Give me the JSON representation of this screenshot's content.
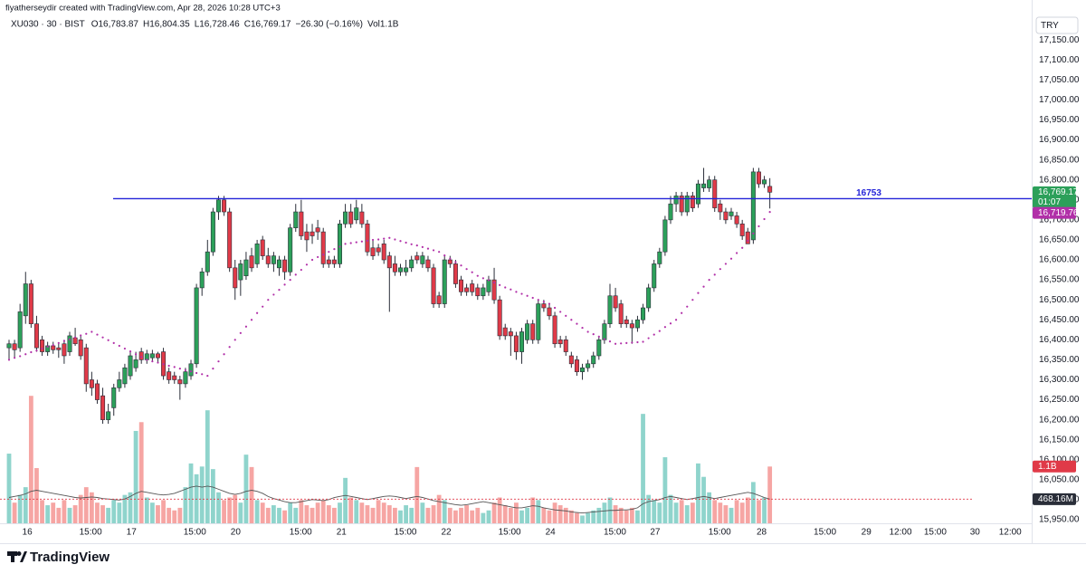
{
  "chart_data": {
    "type": "candlestick",
    "caption": "fiyatherseydir created with TradingView.com, Apr 28, 2026 10:28 UTC+3",
    "symbol": "XU030 · 30 · BIST",
    "status": [
      "O16,783.87",
      "H16,804.35",
      "L16,728.46",
      "C16,769.17",
      "−26.30 (−0.16%)",
      "Vol1.1B"
    ],
    "currency": "TRY",
    "brand": "TradingView",
    "up_color": "#2ca05a",
    "down_color": "#e03a48",
    "wick_color": "#2a2e39",
    "volume_up_color": "#8fd4cc",
    "volume_down_color": "#f6a5a3",
    "sma_color": "#b12fa8",
    "volume_ma_color": "#555555",
    "hline_color": "#2323d8",
    "xlim": [
      -1.64,
      185.5
    ],
    "ylim": [
      15941,
      17250
    ],
    "xticks": [
      {
        "value": 3.3,
        "label": "16"
      },
      {
        "value": 14.8,
        "label": "15:00"
      },
      {
        "value": 22.2,
        "label": "17"
      },
      {
        "value": 33.7,
        "label": "15:00"
      },
      {
        "value": 41.1,
        "label": "20"
      },
      {
        "value": 52.9,
        "label": "15:00"
      },
      {
        "value": 60.3,
        "label": "21"
      },
      {
        "value": 71.9,
        "label": "15:00"
      },
      {
        "value": 79.3,
        "label": "22"
      },
      {
        "value": 90.8,
        "label": "15:00"
      },
      {
        "value": 98.2,
        "label": "24"
      },
      {
        "value": 109.9,
        "label": "15:00"
      },
      {
        "value": 117.2,
        "label": "27"
      },
      {
        "value": 128.9,
        "label": "15:00"
      },
      {
        "value": 136.5,
        "label": "28"
      },
      {
        "value": 148,
        "label": "15:00"
      },
      {
        "value": 155.5,
        "label": "29"
      },
      {
        "value": 161.7,
        "label": "12:00"
      },
      {
        "value": 168,
        "label": "15:00"
      },
      {
        "value": 175.2,
        "label": "30"
      },
      {
        "value": 181.6,
        "label": "12:00"
      }
    ],
    "yticks": [
      {
        "value": 17150,
        "label": "17,150.00"
      },
      {
        "value": 17100,
        "label": "17,100.00"
      },
      {
        "value": 17050,
        "label": "17,050.00"
      },
      {
        "value": 17000,
        "label": "17,000.00"
      },
      {
        "value": 16950,
        "label": "16,950.00"
      },
      {
        "value": 16900,
        "label": "16,900.00"
      },
      {
        "value": 16850,
        "label": "16,850.00"
      },
      {
        "value": 16800,
        "label": "16,800.00"
      },
      {
        "value": 16750,
        "label": "16,750.00"
      },
      {
        "value": 16700,
        "label": "16,700.00"
      },
      {
        "value": 16650,
        "label": "16,650.00"
      },
      {
        "value": 16600,
        "label": "16,600.00"
      },
      {
        "value": 16550,
        "label": "16,550.00"
      },
      {
        "value": 16500,
        "label": "16,500.00"
      },
      {
        "value": 16450,
        "label": "16,450.00"
      },
      {
        "value": 16400,
        "label": "16,400.00"
      },
      {
        "value": 16350,
        "label": "16,350.00"
      },
      {
        "value": 16300,
        "label": "16,300.00"
      },
      {
        "value": 16250,
        "label": "16,250.00"
      },
      {
        "value": 16200,
        "label": "16,200.00"
      },
      {
        "value": 16150,
        "label": "16,150.00"
      },
      {
        "value": 16100,
        "label": "16,100.00"
      },
      {
        "value": 16050,
        "label": "16,050.00"
      },
      {
        "value": 16000,
        "label": "16,000.00"
      },
      {
        "value": 15950,
        "label": "15,950.00"
      }
    ],
    "hline": {
      "value": 16753,
      "label": "16753"
    },
    "last_close_label": "16,769.17",
    "countdown": "01:07",
    "sma_last_label": "16,719.76",
    "volume_last_label": "1.1B",
    "volume_ma_last_label": "468.16M",
    "ohlc": [
      [
        16380,
        16400,
        16350,
        16390
      ],
      [
        16390,
        16400,
        16355,
        16375
      ],
      [
        16380,
        16490,
        16370,
        16470
      ],
      [
        16460,
        16570,
        16440,
        16540
      ],
      [
        16540,
        16550,
        16430,
        16440
      ],
      [
        16440,
        16460,
        16370,
        16380
      ],
      [
        16400,
        16410,
        16360,
        16370
      ],
      [
        16370,
        16395,
        16360,
        16385
      ],
      [
        16385,
        16395,
        16365,
        16375
      ],
      [
        16380,
        16390,
        16355,
        16375
      ],
      [
        16390,
        16400,
        16340,
        16360
      ],
      [
        16370,
        16420,
        16360,
        16410
      ],
      [
        16405,
        16430,
        16385,
        16390
      ],
      [
        16400,
        16410,
        16350,
        16360
      ],
      [
        16380,
        16390,
        16270,
        16290
      ],
      [
        16300,
        16320,
        16260,
        16280
      ],
      [
        16290,
        16300,
        16240,
        16250
      ],
      [
        16260,
        16280,
        16190,
        16200
      ],
      [
        16200,
        16240,
        16190,
        16220
      ],
      [
        16230,
        16290,
        16210,
        16280
      ],
      [
        16280,
        16320,
        16270,
        16300
      ],
      [
        16290,
        16340,
        16280,
        16330
      ],
      [
        16310,
        16370,
        16300,
        16360
      ],
      [
        16330,
        16370,
        16320,
        16350
      ],
      [
        16370,
        16380,
        16340,
        16350
      ],
      [
        16350,
        16375,
        16340,
        16365
      ],
      [
        16355,
        16375,
        16345,
        16365
      ],
      [
        16365,
        16370,
        16345,
        16355
      ],
      [
        16370,
        16380,
        16300,
        16310
      ],
      [
        16320,
        16330,
        16290,
        16300
      ],
      [
        16310,
        16320,
        16290,
        16300
      ],
      [
        16300,
        16310,
        16250,
        16290
      ],
      [
        16290,
        16330,
        16280,
        16320
      ],
      [
        16310,
        16350,
        16300,
        16340
      ],
      [
        16340,
        16540,
        16330,
        16530
      ],
      [
        16530,
        16580,
        16510,
        16570
      ],
      [
        16570,
        16650,
        16560,
        16620
      ],
      [
        16620,
        16730,
        16610,
        16720
      ],
      [
        16720,
        16760,
        16700,
        16750
      ],
      [
        16750,
        16760,
        16710,
        16720
      ],
      [
        16720,
        16730,
        16570,
        16580
      ],
      [
        16580,
        16600,
        16500,
        16530
      ],
      [
        16550,
        16600,
        16510,
        16590
      ],
      [
        16560,
        16620,
        16550,
        16600
      ],
      [
        16610,
        16630,
        16570,
        16580
      ],
      [
        16590,
        16650,
        16580,
        16640
      ],
      [
        16650,
        16660,
        16600,
        16610
      ],
      [
        16610,
        16630,
        16580,
        16590
      ],
      [
        16590,
        16620,
        16570,
        16610
      ],
      [
        16580,
        16610,
        16560,
        16600
      ],
      [
        16600,
        16610,
        16550,
        16570
      ],
      [
        16570,
        16690,
        16560,
        16680
      ],
      [
        16680,
        16740,
        16670,
        16720
      ],
      [
        16720,
        16750,
        16650,
        16660
      ],
      [
        16670,
        16690,
        16620,
        16650
      ],
      [
        16670,
        16690,
        16640,
        16660
      ],
      [
        16680,
        16700,
        16650,
        16670
      ],
      [
        16670,
        16680,
        16580,
        16590
      ],
      [
        16600,
        16610,
        16580,
        16590
      ],
      [
        16600,
        16610,
        16580,
        16590
      ],
      [
        16590,
        16700,
        16580,
        16690
      ],
      [
        16690,
        16740,
        16680,
        16720
      ],
      [
        16720,
        16740,
        16680,
        16690
      ],
      [
        16700,
        16750,
        16690,
        16730
      ],
      [
        16720,
        16740,
        16680,
        16690
      ],
      [
        16690,
        16700,
        16610,
        16620
      ],
      [
        16630,
        16650,
        16600,
        16610
      ],
      [
        16630,
        16640,
        16610,
        16620
      ],
      [
        16640,
        16650,
        16590,
        16600
      ],
      [
        16610,
        16620,
        16470,
        16580
      ],
      [
        16590,
        16610,
        16560,
        16570
      ],
      [
        16570,
        16590,
        16560,
        16580
      ],
      [
        16570,
        16600,
        16560,
        16580
      ],
      [
        16580,
        16610,
        16570,
        16600
      ],
      [
        16610,
        16620,
        16590,
        16600
      ],
      [
        16590,
        16620,
        16580,
        16610
      ],
      [
        16600,
        16610,
        16570,
        16580
      ],
      [
        16580,
        16590,
        16480,
        16490
      ],
      [
        16510,
        16520,
        16480,
        16490
      ],
      [
        16490,
        16610,
        16480,
        16600
      ],
      [
        16600,
        16610,
        16580,
        16590
      ],
      [
        16590,
        16600,
        16530,
        16540
      ],
      [
        16550,
        16560,
        16510,
        16520
      ],
      [
        16530,
        16540,
        16510,
        16520
      ],
      [
        16540,
        16550,
        16510,
        16520
      ],
      [
        16530,
        16540,
        16500,
        16510
      ],
      [
        16510,
        16540,
        16500,
        16530
      ],
      [
        16520,
        16560,
        16510,
        16550
      ],
      [
        16550,
        16580,
        16490,
        16500
      ],
      [
        16500,
        16510,
        16400,
        16410
      ],
      [
        16430,
        16440,
        16400,
        16410
      ],
      [
        16420,
        16430,
        16360,
        16410
      ],
      [
        16410,
        16420,
        16350,
        16370
      ],
      [
        16370,
        16430,
        16340,
        16420
      ],
      [
        16400,
        16450,
        16390,
        16440
      ],
      [
        16440,
        16450,
        16390,
        16400
      ],
      [
        16400,
        16500,
        16390,
        16490
      ],
      [
        16490,
        16500,
        16470,
        16480
      ],
      [
        16480,
        16490,
        16450,
        16460
      ],
      [
        16460,
        16470,
        16380,
        16390
      ],
      [
        16400,
        16410,
        16380,
        16390
      ],
      [
        16400,
        16410,
        16360,
        16370
      ],
      [
        16360,
        16370,
        16330,
        16340
      ],
      [
        16350,
        16360,
        16310,
        16320
      ],
      [
        16320,
        16340,
        16300,
        16330
      ],
      [
        16330,
        16350,
        16320,
        16340
      ],
      [
        16340,
        16370,
        16330,
        16360
      ],
      [
        16360,
        16410,
        16350,
        16400
      ],
      [
        16400,
        16450,
        16390,
        16440
      ],
      [
        16440,
        16540,
        16430,
        16510
      ],
      [
        16510,
        16530,
        16470,
        16480
      ],
      [
        16490,
        16500,
        16430,
        16440
      ],
      [
        16450,
        16460,
        16430,
        16440
      ],
      [
        16440,
        16450,
        16390,
        16430
      ],
      [
        16430,
        16460,
        16420,
        16450
      ],
      [
        16450,
        16490,
        16440,
        16480
      ],
      [
        16480,
        16540,
        16470,
        16530
      ],
      [
        16530,
        16600,
        16520,
        16590
      ],
      [
        16590,
        16630,
        16580,
        16620
      ],
      [
        16620,
        16710,
        16610,
        16700
      ],
      [
        16700,
        16760,
        16690,
        16740
      ],
      [
        16740,
        16770,
        16720,
        16760
      ],
      [
        16760,
        16770,
        16710,
        16720
      ],
      [
        16720,
        16770,
        16710,
        16760
      ],
      [
        16760,
        16770,
        16720,
        16730
      ],
      [
        16740,
        16800,
        16730,
        16790
      ],
      [
        16780,
        16830,
        16770,
        16790
      ],
      [
        16780,
        16810,
        16770,
        16800
      ],
      [
        16800,
        16810,
        16720,
        16730
      ],
      [
        16740,
        16750,
        16700,
        16720
      ],
      [
        16720,
        16730,
        16690,
        16700
      ],
      [
        16710,
        16730,
        16700,
        16720
      ],
      [
        16710,
        16720,
        16680,
        16690
      ],
      [
        16690,
        16700,
        16650,
        16660
      ],
      [
        16670,
        16680,
        16640,
        16640
      ],
      [
        16650,
        16830,
        16640,
        16820
      ],
      [
        16820,
        16830,
        16780,
        16790
      ],
      [
        16790,
        16810,
        16780,
        16800
      ],
      [
        16783.87,
        16804.35,
        16728.46,
        16769.17
      ]
    ],
    "sma": [
      16350,
      16355,
      16359,
      16364,
      16369,
      16373,
      16378,
      16383,
      16387,
      16392,
      16397,
      16401,
      16406,
      16411,
      16415,
      16420,
      16413,
      16406,
      16399,
      16392,
      16385,
      16378,
      16371,
      16364,
      16357,
      16350,
      16346,
      16343,
      16339,
      16335,
      16332,
      16328,
      16324,
      16321,
      16317,
      16314,
      16310,
      16328,
      16346,
      16364,
      16382,
      16400,
      16417,
      16433,
      16450,
      16467,
      16483,
      16500,
      16513,
      16525,
      16538,
      16550,
      16563,
      16575,
      16588,
      16600,
      16607,
      16613,
      16620,
      16627,
      16633,
      16640,
      16642,
      16644,
      16646,
      16648,
      16650,
      16651,
      16653,
      16655,
      16651,
      16647,
      16643,
      16639,
      16636,
      16632,
      16628,
      16624,
      16620,
      16611,
      16603,
      16594,
      16586,
      16577,
      16569,
      16560,
      16554,
      16549,
      16543,
      16537,
      16531,
      16526,
      16520,
      16515,
      16510,
      16505,
      16500,
      16495,
      16490,
      16480,
      16470,
      16460,
      16450,
      16440,
      16430,
      16420,
      16414,
      16408,
      16402,
      16396,
      16390,
      16391,
      16392,
      16393,
      16394,
      16395,
      16404,
      16413,
      16422,
      16432,
      16441,
      16450,
      16467,
      16483,
      16500,
      16517,
      16533,
      16550,
      16563,
      16577,
      16590,
      16603,
      16617,
      16630,
      16648,
      16666,
      16684,
      16702,
      16719.76
    ],
    "volume": [
      1.35,
      0.4,
      0.55,
      0.7,
      2.47,
      1.07,
      0.45,
      0.35,
      0.4,
      0.3,
      0.45,
      0.3,
      0.35,
      0.55,
      0.7,
      0.6,
      0.4,
      0.35,
      0.3,
      0.45,
      0.4,
      0.55,
      0.6,
      1.79,
      1.96,
      0.5,
      0.4,
      0.35,
      0.45,
      0.3,
      0.25,
      0.3,
      0.7,
      1.16,
      0.95,
      1.1,
      2.19,
      1.05,
      0.6,
      0.45,
      0.5,
      0.55,
      0.4,
      1.33,
      1.09,
      0.45,
      0.4,
      0.3,
      0.35,
      0.3,
      0.25,
      0.4,
      0.3,
      0.45,
      0.35,
      0.3,
      0.4,
      0.45,
      0.35,
      0.3,
      0.4,
      0.88,
      0.5,
      0.45,
      0.4,
      0.35,
      0.3,
      0.45,
      0.4,
      0.35,
      0.3,
      0.25,
      0.35,
      0.3,
      1.09,
      0.4,
      0.3,
      0.35,
      0.55,
      0.45,
      0.3,
      0.25,
      0.3,
      0.35,
      0.25,
      0.3,
      0.2,
      0.25,
      0.4,
      0.5,
      0.35,
      0.3,
      0.4,
      0.25,
      0.3,
      0.5,
      0.45,
      0.3,
      0.25,
      0.4,
      0.35,
      0.3,
      0.25,
      0.2,
      0.15,
      0.2,
      0.25,
      0.3,
      0.4,
      0.5,
      0.35,
      0.3,
      0.25,
      0.3,
      0.25,
      2.12,
      0.55,
      0.45,
      0.4,
      1.28,
      0.55,
      0.4,
      0.45,
      0.35,
      0.4,
      1.16,
      0.9,
      0.6,
      0.45,
      0.4,
      0.35,
      0.3,
      0.45,
      0.4,
      0.5,
      0.8,
      0.45,
      0.5,
      1.1
    ],
    "volume_ma": [
      0.5,
      0.52,
      0.54,
      0.57,
      0.62,
      0.64,
      0.62,
      0.6,
      0.58,
      0.56,
      0.54,
      0.52,
      0.5,
      0.49,
      0.5,
      0.51,
      0.5,
      0.48,
      0.47,
      0.46,
      0.45,
      0.47,
      0.52,
      0.58,
      0.62,
      0.6,
      0.58,
      0.56,
      0.55,
      0.56,
      0.58,
      0.62,
      0.66,
      0.7,
      0.72,
      0.7,
      0.72,
      0.7,
      0.66,
      0.62,
      0.58,
      0.56,
      0.58,
      0.62,
      0.64,
      0.62,
      0.58,
      0.52,
      0.48,
      0.45,
      0.42,
      0.4,
      0.4,
      0.42,
      0.44,
      0.46,
      0.45,
      0.44,
      0.46,
      0.5,
      0.52,
      0.54,
      0.52,
      0.5,
      0.48,
      0.46,
      0.48,
      0.5,
      0.52,
      0.53,
      0.52,
      0.5,
      0.48,
      0.5,
      0.52,
      0.5,
      0.47,
      0.44,
      0.42,
      0.4,
      0.38,
      0.36,
      0.35,
      0.36,
      0.38,
      0.4,
      0.42,
      0.4,
      0.38,
      0.36,
      0.34,
      0.32,
      0.3,
      0.3,
      0.32,
      0.34,
      0.33,
      0.3,
      0.28,
      0.26,
      0.25,
      0.24,
      0.22,
      0.21,
      0.2,
      0.21,
      0.22,
      0.23,
      0.24,
      0.25,
      0.25,
      0.26,
      0.26,
      0.27,
      0.3,
      0.38,
      0.42,
      0.44,
      0.46,
      0.5,
      0.52,
      0.5,
      0.48,
      0.46,
      0.48,
      0.5,
      0.52,
      0.5,
      0.48,
      0.5,
      0.52,
      0.54,
      0.56,
      0.58,
      0.6,
      0.58,
      0.54,
      0.5,
      0.46816
    ]
  }
}
